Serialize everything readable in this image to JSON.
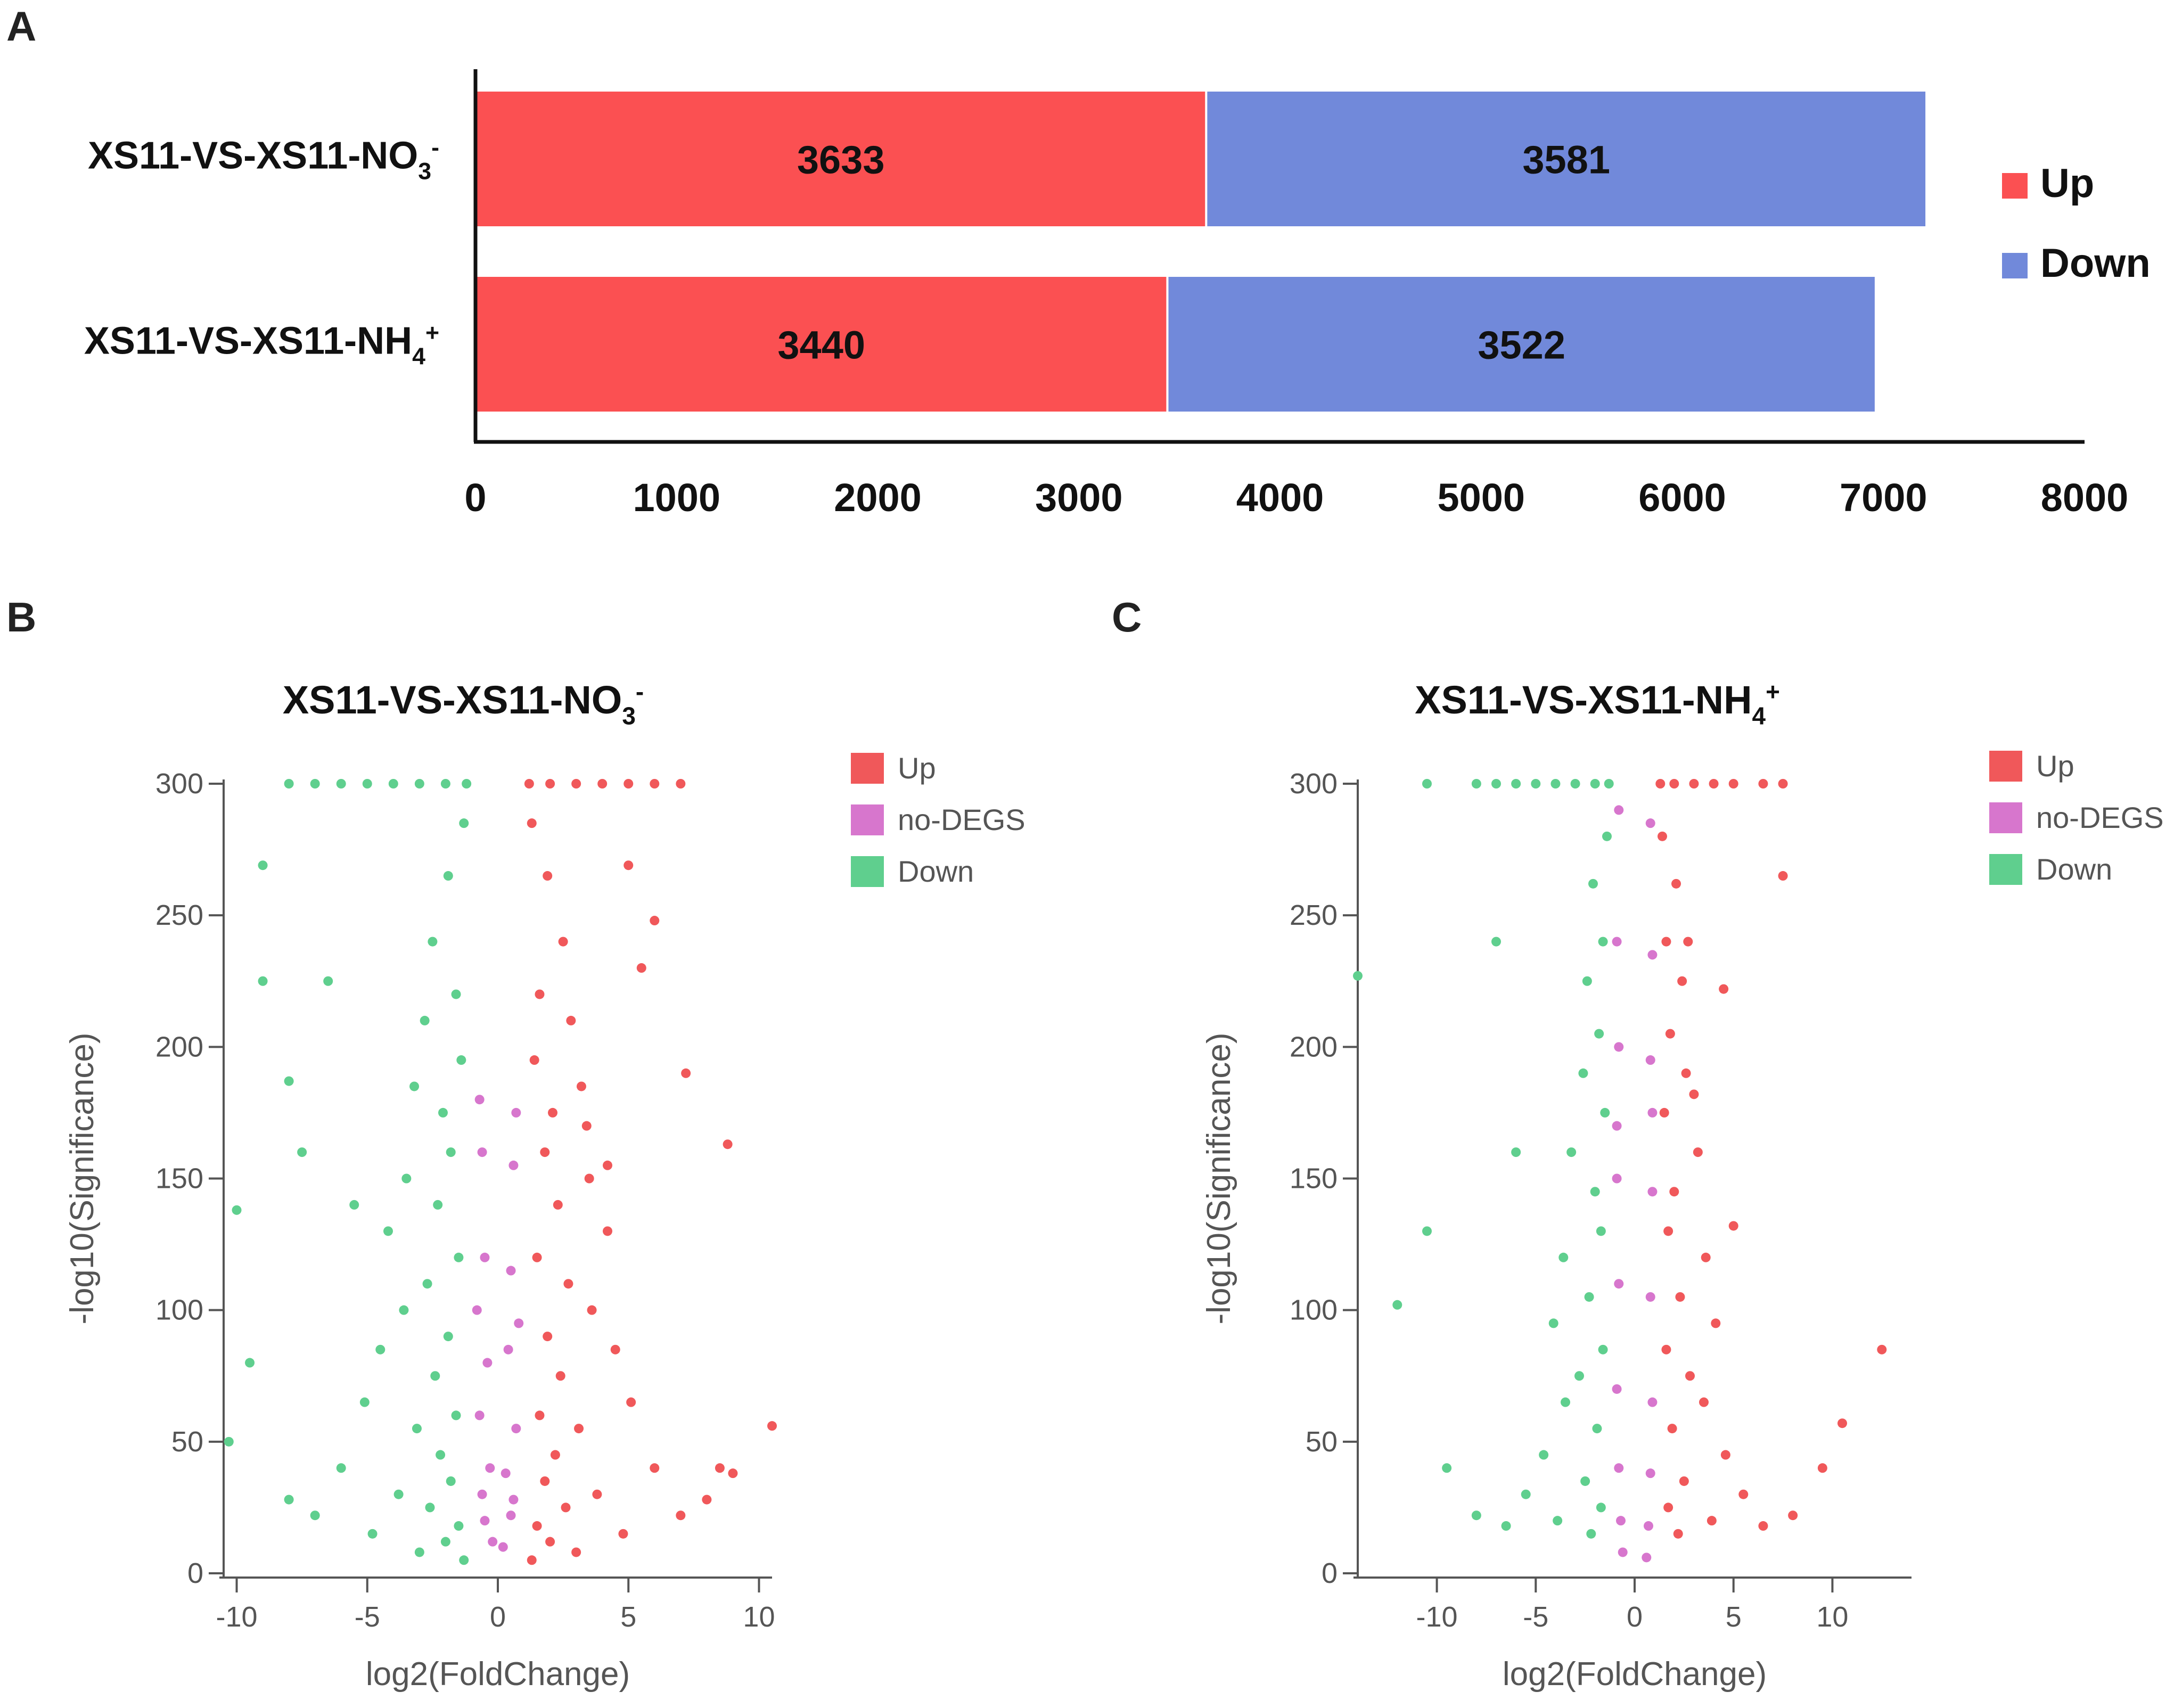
{
  "panels": {
    "a": "A",
    "b": "B",
    "c": "C"
  },
  "colors": {
    "up": "#fb5052",
    "down": "#7189da",
    "volcano_up": "#f0585a",
    "volcano_nodegs": "#d776cd",
    "volcano_down": "#5fcf8e"
  },
  "chart_data": [
    {
      "type": "bar",
      "orientation": "horizontal",
      "stacked": true,
      "categories": [
        {
          "base": "XS11-VS-XS11-NO",
          "sub": "3",
          "sup": "-"
        },
        {
          "base": "XS11-VS-XS11-NH",
          "sub": "4",
          "sup": "+"
        }
      ],
      "series": [
        {
          "name": "Up",
          "values": [
            3633,
            3440
          ]
        },
        {
          "name": "Down",
          "values": [
            3581,
            3522
          ]
        }
      ],
      "xlim": [
        0,
        8000
      ],
      "xticks": [
        "0",
        "1000",
        "2000",
        "3000",
        "4000",
        "5000",
        "6000",
        "7000",
        "8000"
      ],
      "legend": [
        "Up",
        "Down"
      ],
      "legend_position": "right"
    },
    {
      "type": "scatter",
      "title": {
        "base": "XS11-VS-XS11-NO",
        "sub": "3",
        "sup": "-"
      },
      "xlabel": "log2(FoldChange)",
      "ylabel": "-log10(Significance)",
      "xlim": [
        -10.5,
        10.5
      ],
      "ylim": [
        0,
        300
      ],
      "xticks": [
        "-10",
        "-5",
        "0",
        "5",
        "10"
      ],
      "yticks": [
        "0",
        "50",
        "100",
        "150",
        "200",
        "250",
        "300"
      ],
      "legend": [
        "Up",
        "no-DEGS",
        "Down"
      ],
      "series": [
        {
          "name": "Up",
          "points": [
            [
              1.2,
              300
            ],
            [
              2.0,
              300
            ],
            [
              3.0,
              300
            ],
            [
              4.0,
              300
            ],
            [
              5.0,
              300
            ],
            [
              6.0,
              300
            ],
            [
              7.0,
              300
            ],
            [
              1.3,
              285
            ],
            [
              1.9,
              265
            ],
            [
              2.5,
              240
            ],
            [
              1.6,
              220
            ],
            [
              2.8,
              210
            ],
            [
              1.4,
              195
            ],
            [
              3.2,
              185
            ],
            [
              2.1,
              175
            ],
            [
              1.8,
              160
            ],
            [
              3.5,
              150
            ],
            [
              2.3,
              140
            ],
            [
              4.2,
              130
            ],
            [
              1.5,
              120
            ],
            [
              2.7,
              110
            ],
            [
              3.6,
              100
            ],
            [
              1.9,
              90
            ],
            [
              4.5,
              85
            ],
            [
              2.4,
              75
            ],
            [
              5.1,
              65
            ],
            [
              1.6,
              60
            ],
            [
              3.1,
              55
            ],
            [
              2.2,
              45
            ],
            [
              6.0,
              40
            ],
            [
              1.8,
              35
            ],
            [
              3.8,
              30
            ],
            [
              2.6,
              25
            ],
            [
              7.0,
              22
            ],
            [
              1.5,
              18
            ],
            [
              4.8,
              15
            ],
            [
              2.0,
              12
            ],
            [
              8.0,
              28
            ],
            [
              3.0,
              8
            ],
            [
              1.3,
              5
            ],
            [
              5.0,
              269
            ],
            [
              6.0,
              248
            ],
            [
              7.2,
              190
            ],
            [
              8.8,
              163
            ],
            [
              10.5,
              56
            ],
            [
              9.0,
              38
            ],
            [
              8.5,
              40
            ],
            [
              5.5,
              230
            ],
            [
              4.2,
              155
            ],
            [
              3.4,
              170
            ]
          ]
        },
        {
          "name": "no-DEGS",
          "points": [
            [
              -0.6,
              160
            ],
            [
              0.6,
              155
            ],
            [
              -0.5,
              120
            ],
            [
              0.5,
              115
            ],
            [
              -0.4,
              80
            ],
            [
              0.4,
              85
            ],
            [
              -0.7,
              60
            ],
            [
              0.7,
              55
            ],
            [
              -0.3,
              40
            ],
            [
              0.3,
              38
            ],
            [
              -0.6,
              30
            ],
            [
              0.6,
              28
            ],
            [
              -0.2,
              12
            ],
            [
              0.2,
              10
            ],
            [
              -0.5,
              20
            ],
            [
              0.5,
              22
            ],
            [
              -0.8,
              100
            ],
            [
              0.8,
              95
            ],
            [
              -0.7,
              180
            ],
            [
              0.7,
              175
            ]
          ]
        },
        {
          "name": "Down",
          "points": [
            [
              -1.2,
              300
            ],
            [
              -2.0,
              300
            ],
            [
              -3.0,
              300
            ],
            [
              -4.0,
              300
            ],
            [
              -5.0,
              300
            ],
            [
              -6.0,
              300
            ],
            [
              -7.0,
              300
            ],
            [
              -8.0,
              300
            ],
            [
              -1.3,
              285
            ],
            [
              -1.9,
              265
            ],
            [
              -2.5,
              240
            ],
            [
              -1.6,
              220
            ],
            [
              -2.8,
              210
            ],
            [
              -1.4,
              195
            ],
            [
              -3.2,
              185
            ],
            [
              -2.1,
              175
            ],
            [
              -1.8,
              160
            ],
            [
              -3.5,
              150
            ],
            [
              -2.3,
              140
            ],
            [
              -4.2,
              130
            ],
            [
              -1.5,
              120
            ],
            [
              -2.7,
              110
            ],
            [
              -3.6,
              100
            ],
            [
              -1.9,
              90
            ],
            [
              -4.5,
              85
            ],
            [
              -2.4,
              75
            ],
            [
              -5.1,
              65
            ],
            [
              -1.6,
              60
            ],
            [
              -3.1,
              55
            ],
            [
              -2.2,
              45
            ],
            [
              -6.0,
              40
            ],
            [
              -1.8,
              35
            ],
            [
              -3.8,
              30
            ],
            [
              -2.6,
              25
            ],
            [
              -7.0,
              22
            ],
            [
              -1.5,
              18
            ],
            [
              -4.8,
              15
            ],
            [
              -2.0,
              12
            ],
            [
              -8.0,
              28
            ],
            [
              -3.0,
              8
            ],
            [
              -1.3,
              5
            ],
            [
              -9.0,
              269
            ],
            [
              -9.0,
              225
            ],
            [
              -8.0,
              187
            ],
            [
              -10.0,
              138
            ],
            [
              -10.3,
              50
            ],
            [
              -9.5,
              80
            ],
            [
              -6.5,
              225
            ],
            [
              -7.5,
              160
            ],
            [
              -5.5,
              140
            ]
          ]
        }
      ]
    },
    {
      "type": "scatter",
      "title": {
        "base": "XS11-VS-XS11-NH",
        "sub": "4",
        "sup": "+"
      },
      "xlabel": "log2(FoldChange)",
      "ylabel": "-log10(Significance)",
      "xlim": [
        -14,
        14
      ],
      "ylim": [
        0,
        300
      ],
      "xticks": [
        "-10",
        "-5",
        "0",
        "5",
        "10"
      ],
      "yticks": [
        "0",
        "50",
        "100",
        "150",
        "200",
        "250",
        "300"
      ],
      "legend": [
        "Up",
        "no-DEGS",
        "Down"
      ],
      "series": [
        {
          "name": "Up",
          "points": [
            [
              1.3,
              300
            ],
            [
              2.0,
              300
            ],
            [
              3.0,
              300
            ],
            [
              4.0,
              300
            ],
            [
              5.0,
              300
            ],
            [
              6.5,
              300
            ],
            [
              7.5,
              300
            ],
            [
              1.4,
              280
            ],
            [
              2.1,
              262
            ],
            [
              1.6,
              240
            ],
            [
              2.4,
              225
            ],
            [
              1.8,
              205
            ],
            [
              2.6,
              190
            ],
            [
              1.5,
              175
            ],
            [
              3.2,
              160
            ],
            [
              2.0,
              145
            ],
            [
              1.7,
              130
            ],
            [
              3.6,
              120
            ],
            [
              2.3,
              105
            ],
            [
              4.1,
              95
            ],
            [
              1.6,
              85
            ],
            [
              2.8,
              75
            ],
            [
              3.5,
              65
            ],
            [
              1.9,
              55
            ],
            [
              4.6,
              45
            ],
            [
              2.5,
              35
            ],
            [
              5.5,
              30
            ],
            [
              1.7,
              25
            ],
            [
              3.9,
              20
            ],
            [
              2.2,
              15
            ],
            [
              6.5,
              18
            ],
            [
              8.0,
              22
            ],
            [
              9.5,
              40
            ],
            [
              7.5,
              265
            ],
            [
              12.5,
              85
            ],
            [
              10.5,
              57
            ],
            [
              5.0,
              132
            ],
            [
              4.5,
              222
            ],
            [
              3.0,
              182
            ],
            [
              2.7,
              240
            ]
          ]
        },
        {
          "name": "no-DEGS",
          "points": [
            [
              -0.8,
              290
            ],
            [
              0.8,
              285
            ],
            [
              -0.9,
              240
            ],
            [
              0.9,
              235
            ],
            [
              -0.8,
              200
            ],
            [
              0.8,
              195
            ],
            [
              -0.9,
              150
            ],
            [
              0.9,
              145
            ],
            [
              -0.8,
              110
            ],
            [
              0.8,
              105
            ],
            [
              -0.9,
              70
            ],
            [
              0.9,
              65
            ],
            [
              -0.8,
              40
            ],
            [
              0.8,
              38
            ],
            [
              -0.7,
              20
            ],
            [
              0.7,
              18
            ],
            [
              -0.6,
              8
            ],
            [
              0.6,
              6
            ],
            [
              -0.9,
              170
            ],
            [
              0.9,
              175
            ]
          ]
        },
        {
          "name": "Down",
          "points": [
            [
              -1.3,
              300
            ],
            [
              -2.0,
              300
            ],
            [
              -3.0,
              300
            ],
            [
              -4.0,
              300
            ],
            [
              -5.0,
              300
            ],
            [
              -6.0,
              300
            ],
            [
              -7.0,
              300
            ],
            [
              -8.0,
              300
            ],
            [
              -10.5,
              300
            ],
            [
              -1.4,
              280
            ],
            [
              -2.1,
              262
            ],
            [
              -1.6,
              240
            ],
            [
              -2.4,
              225
            ],
            [
              -1.8,
              205
            ],
            [
              -2.6,
              190
            ],
            [
              -1.5,
              175
            ],
            [
              -3.2,
              160
            ],
            [
              -2.0,
              145
            ],
            [
              -1.7,
              130
            ],
            [
              -3.6,
              120
            ],
            [
              -2.3,
              105
            ],
            [
              -4.1,
              95
            ],
            [
              -1.6,
              85
            ],
            [
              -2.8,
              75
            ],
            [
              -3.5,
              65
            ],
            [
              -1.9,
              55
            ],
            [
              -4.6,
              45
            ],
            [
              -2.5,
              35
            ],
            [
              -5.5,
              30
            ],
            [
              -1.7,
              25
            ],
            [
              -3.9,
              20
            ],
            [
              -2.2,
              15
            ],
            [
              -6.5,
              18
            ],
            [
              -8.0,
              22
            ],
            [
              -9.5,
              40
            ],
            [
              -12.0,
              102
            ],
            [
              -10.5,
              130
            ],
            [
              -14.0,
              227
            ],
            [
              -7.0,
              240
            ],
            [
              -6.0,
              160
            ]
          ]
        }
      ]
    }
  ]
}
